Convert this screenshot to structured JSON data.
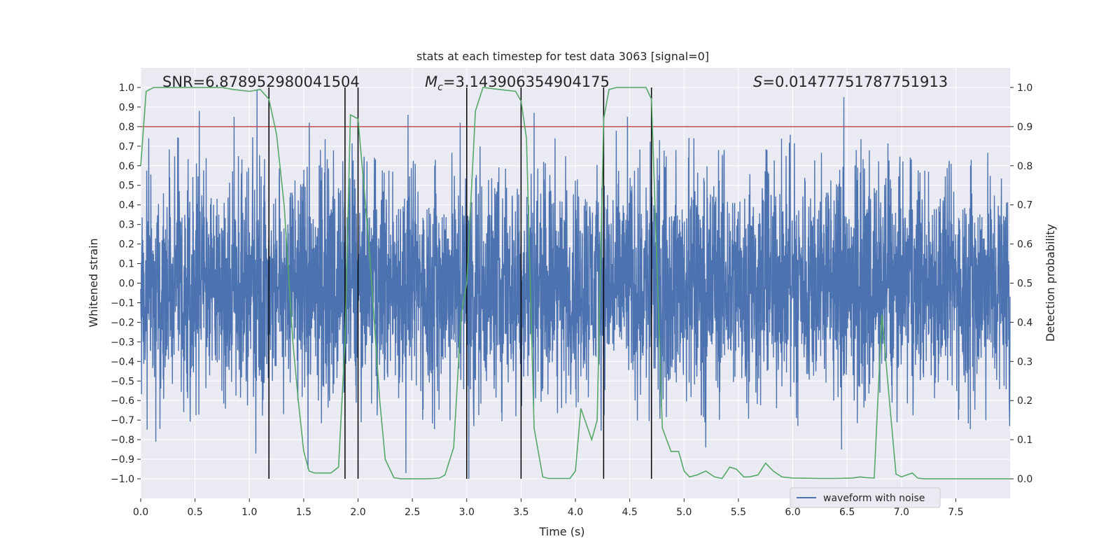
{
  "chart_data": {
    "type": "line",
    "title": "stats at each timestep for test data 3063 [signal=0]",
    "xlabel": "Time (s)",
    "ylabel": "Whitened strain",
    "y2label": "Detection probability",
    "xlim": [
      0.0,
      8.0
    ],
    "ylim": [
      -1.1,
      1.1
    ],
    "y2lim": [
      -0.05,
      1.05
    ],
    "x_ticks": [
      0.0,
      0.5,
      1.0,
      1.5,
      2.0,
      2.5,
      3.0,
      3.5,
      4.0,
      4.5,
      5.0,
      5.5,
      6.0,
      6.5,
      7.0,
      7.5
    ],
    "y_ticks": [
      -1.0,
      -0.9,
      -0.8,
      -0.7,
      -0.6,
      -0.5,
      -0.4,
      -0.3,
      -0.2,
      -0.1,
      0.0,
      0.1,
      0.2,
      0.3,
      0.4,
      0.5,
      0.6,
      0.7,
      0.8,
      0.9,
      1.0
    ],
    "y2_ticks": [
      0.0,
      0.1,
      0.2,
      0.3,
      0.4,
      0.5,
      0.6,
      0.7,
      0.8,
      0.9,
      1.0
    ],
    "grid": true,
    "legend_position": "bottom-right",
    "annotations": {
      "snr": {
        "prefix": "SNR=",
        "value": "6.878952980041504"
      },
      "mc": {
        "symbol": "M",
        "subscript": "c",
        "eq": "=",
        "value": "3.143906354904175"
      },
      "s": {
        "symbol": "S",
        "eq": "=",
        "value": "0.01477751787751913"
      }
    },
    "threshold": {
      "y2": 0.9,
      "color": "#c44e52"
    },
    "vertical_lines": {
      "x": [
        1.18,
        1.88,
        2.0,
        3.0,
        3.5,
        4.26,
        4.7
      ],
      "y_range": [
        -1.0,
        1.0
      ],
      "color": "#000000"
    },
    "series": [
      {
        "name": "waveform with noise",
        "axis": "left",
        "color": "#4c72b0",
        "kind": "noise",
        "x_range": [
          0.0,
          8.0
        ],
        "envelope": 0.5,
        "peaks": [
          {
            "x": 0.54,
            "y": 0.88
          },
          {
            "x": 1.07,
            "y": 0.99
          },
          {
            "x": 0.86,
            "y": 0.85
          },
          {
            "x": 1.55,
            "y": 0.82
          },
          {
            "x": 2.46,
            "y": 0.86
          },
          {
            "x": 2.94,
            "y": 0.82
          },
          {
            "x": 3.62,
            "y": 0.87
          },
          {
            "x": 4.48,
            "y": 0.85
          },
          {
            "x": 6.47,
            "y": 0.95
          },
          {
            "x": 0.14,
            "y": -0.81
          },
          {
            "x": 1.06,
            "y": -0.87
          },
          {
            "x": 1.54,
            "y": -0.95
          },
          {
            "x": 2.44,
            "y": -0.97
          },
          {
            "x": 3.02,
            "y": -1.0
          },
          {
            "x": 5.2,
            "y": -0.84
          },
          {
            "x": 6.45,
            "y": -0.85
          }
        ]
      },
      {
        "name": "detection probability",
        "axis": "right",
        "color": "#55a868",
        "x": [
          0.0,
          0.05,
          0.12,
          0.25,
          0.5,
          0.75,
          0.85,
          1.0,
          1.1,
          1.18,
          1.25,
          1.32,
          1.4,
          1.45,
          1.5,
          1.55,
          1.6,
          1.75,
          1.82,
          1.88,
          1.93,
          2.0,
          2.1,
          2.2,
          2.25,
          2.33,
          2.4,
          2.6,
          2.7,
          2.75,
          2.8,
          2.88,
          2.95,
          3.0,
          3.08,
          3.15,
          3.3,
          3.45,
          3.5,
          3.55,
          3.62,
          3.7,
          3.75,
          3.8,
          3.95,
          4.0,
          4.05,
          4.15,
          4.2,
          4.26,
          4.31,
          4.38,
          4.5,
          4.65,
          4.7,
          4.8,
          4.88,
          4.95,
          5.0,
          5.05,
          5.12,
          5.2,
          5.28,
          5.35,
          5.42,
          5.48,
          5.55,
          5.6,
          5.68,
          5.75,
          5.82,
          5.9,
          6.0,
          6.25,
          6.4,
          6.55,
          6.62,
          6.68,
          6.75,
          6.82,
          6.88,
          6.95,
          7.0,
          7.05,
          7.1,
          7.15,
          7.2,
          7.5,
          7.8,
          8.0
        ],
        "values": [
          0.8,
          0.99,
          1.0,
          1.0,
          1.0,
          1.0,
          0.995,
          0.99,
          0.995,
          0.97,
          0.88,
          0.7,
          0.35,
          0.2,
          0.07,
          0.02,
          0.015,
          0.015,
          0.03,
          0.35,
          0.93,
          0.92,
          0.6,
          0.2,
          0.05,
          0.003,
          0.0,
          0.0,
          0.001,
          0.002,
          0.01,
          0.08,
          0.42,
          0.5,
          0.94,
          1.0,
          0.995,
          0.99,
          0.965,
          0.87,
          0.13,
          0.005,
          0.001,
          0.001,
          0.001,
          0.02,
          0.18,
          0.1,
          0.15,
          0.92,
          0.995,
          1.0,
          1.0,
          1.0,
          0.97,
          0.13,
          0.07,
          0.07,
          0.02,
          0.005,
          0.01,
          0.02,
          0.005,
          0.001,
          0.03,
          0.025,
          0.005,
          0.005,
          0.01,
          0.04,
          0.02,
          0.005,
          0.002,
          0.001,
          0.001,
          0.002,
          0.005,
          0.003,
          0.002,
          0.42,
          0.23,
          0.012,
          0.005,
          0.01,
          0.015,
          0.002,
          0.0,
          0.0,
          0.0,
          0.0
        ]
      }
    ]
  }
}
